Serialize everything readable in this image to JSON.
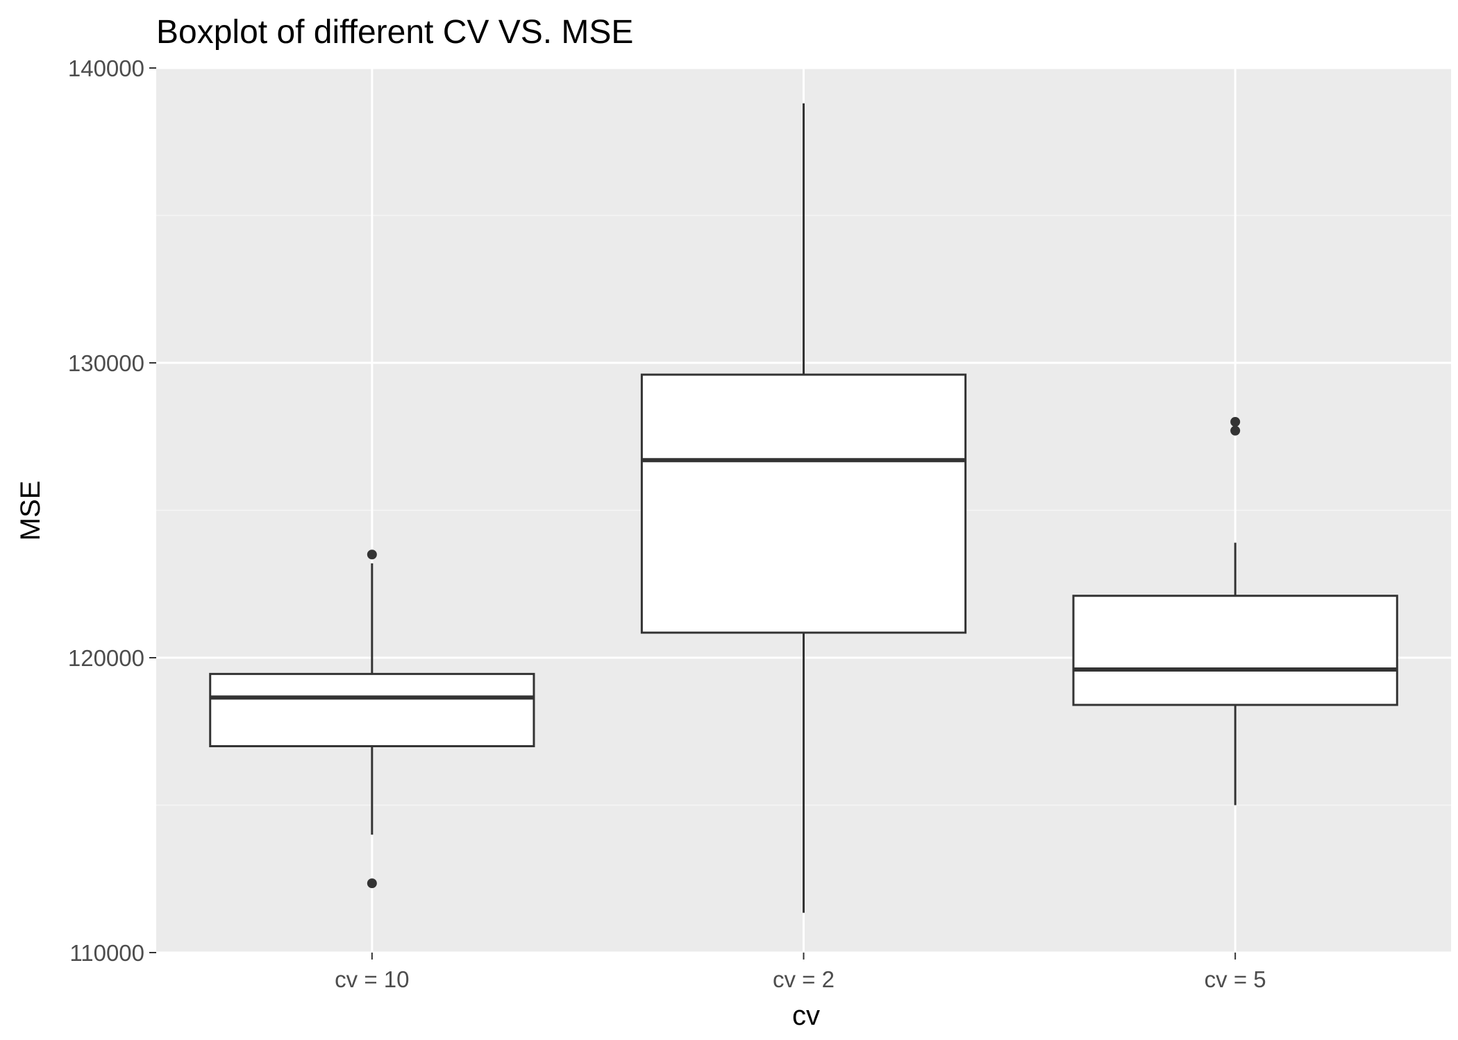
{
  "chart_data": {
    "type": "boxplot",
    "title": "Boxplot of different CV VS. MSE",
    "xlabel": "cv",
    "ylabel": "MSE",
    "ylim": [
      110000,
      140000
    ],
    "y_ticks": [
      110000,
      120000,
      130000,
      140000
    ],
    "y_tick_labels": [
      "110000",
      "120000",
      "130000",
      "140000"
    ],
    "y_minor_ticks": [
      115000,
      125000,
      135000
    ],
    "grid": true,
    "legend": "none",
    "categories": [
      "cv = 10",
      "cv = 2",
      "cv = 5"
    ],
    "boxes": [
      {
        "category": "cv = 10",
        "whisker_low": 114000,
        "q1": 117000,
        "median": 118650,
        "q3": 119450,
        "whisker_high": 123200,
        "outliers": [
          112350,
          123500
        ]
      },
      {
        "category": "cv = 2",
        "whisker_low": 111350,
        "q1": 120850,
        "median": 126700,
        "q3": 129600,
        "whisker_high": 138800,
        "outliers": []
      },
      {
        "category": "cv = 5",
        "whisker_low": 115000,
        "q1": 118400,
        "median": 119600,
        "q3": 122100,
        "whisker_high": 123900,
        "outliers": [
          127700,
          128000
        ]
      }
    ]
  },
  "colors": {
    "panel_background": "#ebebeb",
    "grid_major": "#ffffff",
    "grid_minor": "#f5f5f5",
    "box_stroke": "#333333",
    "box_fill": "#ffffff",
    "tick_text": "#4d4d4d",
    "tick_mark": "#333333",
    "title_text": "#000000"
  }
}
